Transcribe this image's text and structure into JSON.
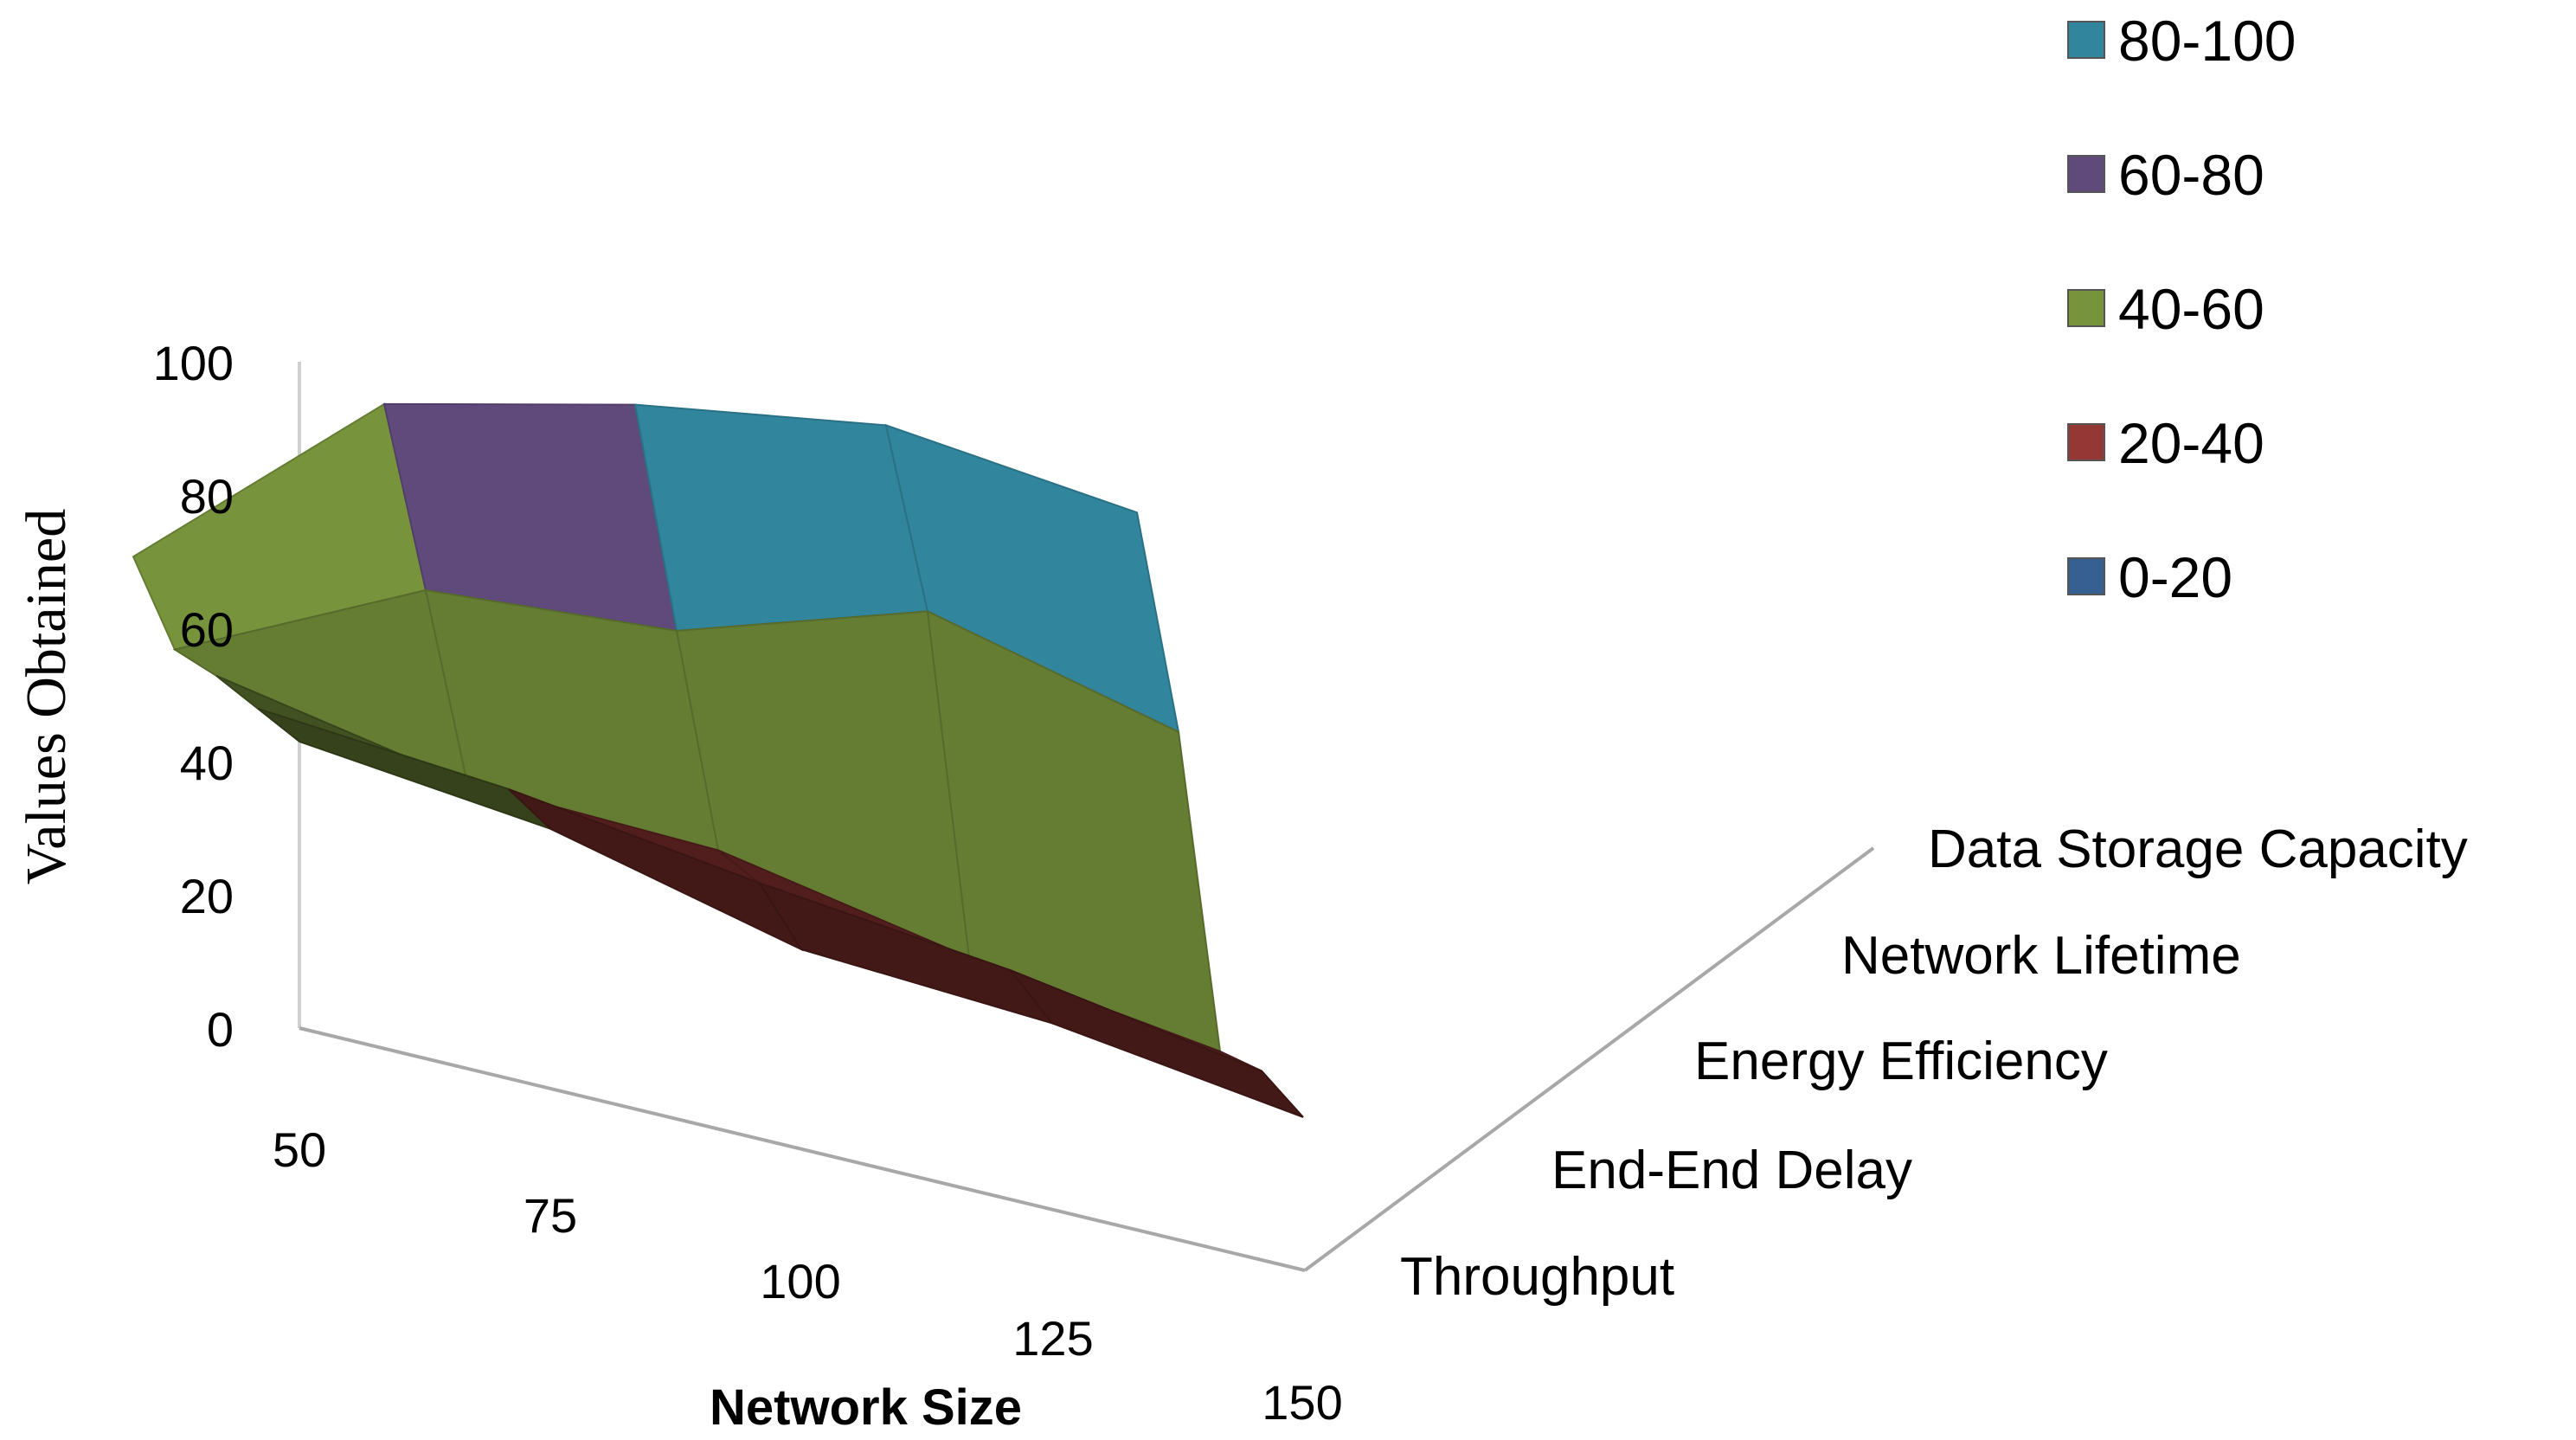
{
  "chart_data": {
    "type": "surface",
    "title": "",
    "xlabel": "Network Size",
    "ylabel": "Values Obtained",
    "zlim": [
      0,
      100
    ],
    "z_ticks": [
      "0",
      "20",
      "40",
      "60",
      "80",
      "100"
    ],
    "categories": [
      "50",
      "75",
      "100",
      "125",
      "150"
    ],
    "series": [
      {
        "name": "Throughput",
        "values": [
          43,
          39,
          30,
          28,
          23
        ]
      },
      {
        "name": "End-End Delay",
        "values": [
          43,
          40,
          35,
          31,
          25
        ]
      },
      {
        "name": "Energy Efficiency",
        "values": [
          43,
          36,
          35,
          28,
          23
        ]
      },
      {
        "name": "Network Lifetime",
        "values": [
          42,
          60,
          63,
          75,
          66
        ]
      },
      {
        "name": "Data Storage Capacity",
        "values": [
          51,
          83,
          92,
          98,
          94
        ]
      }
    ],
    "legend": {
      "position": "top-right",
      "items": [
        {
          "label": "80-100",
          "color": "#31859c"
        },
        {
          "label": "60-80",
          "color": "#604a7b"
        },
        {
          "label": "40-60",
          "color": "#77933c"
        },
        {
          "label": "20-40",
          "color": "#953735"
        },
        {
          "label": "0-20",
          "color": "#376092"
        }
      ]
    }
  }
}
